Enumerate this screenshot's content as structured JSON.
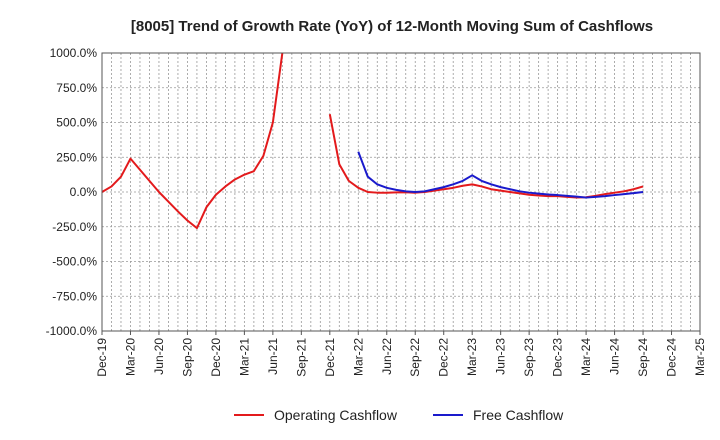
{
  "chart_data": {
    "type": "line",
    "title": "[8005]  Trend of Growth Rate (YoY) of 12-Month Moving Sum of Cashflows",
    "xlabel": "",
    "ylabel": "",
    "ylim": [
      -1000,
      1000
    ],
    "y_ticks": [
      "1000.0%",
      "750.0%",
      "500.0%",
      "250.0%",
      "0.0%",
      "-250.0%",
      "-500.0%",
      "-750.0%",
      "-1000.0%"
    ],
    "y_tick_values": [
      1000,
      750,
      500,
      250,
      0,
      -250,
      -500,
      -750,
      -1000
    ],
    "x_range": [
      "2019-12",
      "2025-03"
    ],
    "x_ticks": [
      "Dec-19",
      "Mar-20",
      "Jun-20",
      "Sep-20",
      "Dec-20",
      "Mar-21",
      "Jun-21",
      "Sep-21",
      "Dec-21",
      "Mar-22",
      "Jun-22",
      "Sep-22",
      "Dec-22",
      "Mar-23",
      "Jun-23",
      "Sep-23",
      "Dec-23",
      "Mar-24",
      "Jun-24",
      "Sep-24",
      "Dec-24",
      "Mar-25"
    ],
    "grid": true,
    "legend_position": "bottom",
    "series": [
      {
        "name": "Operating Cashflow",
        "color": "#e31a1c",
        "points": [
          [
            "2019-12",
            0
          ],
          [
            "2020-01",
            40
          ],
          [
            "2020-02",
            110
          ],
          [
            "2020-03",
            240
          ],
          [
            "2020-04",
            160
          ],
          [
            "2020-05",
            80
          ],
          [
            "2020-06",
            0
          ],
          [
            "2020-07",
            -70
          ],
          [
            "2020-08",
            -140
          ],
          [
            "2020-09",
            -205
          ],
          [
            "2020-10",
            -260
          ],
          [
            "2020-11",
            -110
          ],
          [
            "2020-12",
            -20
          ],
          [
            "2021-01",
            40
          ],
          [
            "2021-02",
            90
          ],
          [
            "2021-03",
            125
          ],
          [
            "2021-04",
            150
          ],
          [
            "2021-05",
            260
          ],
          [
            "2021-06",
            500
          ],
          [
            "2021-07",
            1000
          ],
          null,
          [
            "2021-12",
            560
          ],
          [
            "2022-01",
            200
          ],
          [
            "2022-02",
            80
          ],
          [
            "2022-03",
            30
          ],
          [
            "2022-04",
            0
          ],
          [
            "2022-05",
            -5
          ],
          [
            "2022-06",
            -5
          ],
          [
            "2022-07",
            -3
          ],
          [
            "2022-08",
            -2
          ],
          [
            "2022-09",
            -5
          ],
          [
            "2022-10",
            0
          ],
          [
            "2022-11",
            10
          ],
          [
            "2022-12",
            20
          ],
          [
            "2023-01",
            30
          ],
          [
            "2023-02",
            45
          ],
          [
            "2023-03",
            55
          ],
          [
            "2023-04",
            40
          ],
          [
            "2023-05",
            20
          ],
          [
            "2023-06",
            10
          ],
          [
            "2023-07",
            0
          ],
          [
            "2023-08",
            -10
          ],
          [
            "2023-09",
            -20
          ],
          [
            "2023-10",
            -25
          ],
          [
            "2023-11",
            -30
          ],
          [
            "2023-12",
            -30
          ],
          [
            "2024-01",
            -35
          ],
          [
            "2024-02",
            -40
          ],
          [
            "2024-03",
            -38
          ],
          [
            "2024-04",
            -28
          ],
          [
            "2024-05",
            -15
          ],
          [
            "2024-06",
            -5
          ],
          [
            "2024-07",
            5
          ],
          [
            "2024-08",
            20
          ],
          [
            "2024-09",
            40
          ]
        ]
      },
      {
        "name": "Free Cashflow",
        "color": "#1a1acc",
        "points": [
          [
            "2022-03",
            290
          ],
          [
            "2022-04",
            110
          ],
          [
            "2022-05",
            55
          ],
          [
            "2022-06",
            30
          ],
          [
            "2022-07",
            15
          ],
          [
            "2022-08",
            5
          ],
          [
            "2022-09",
            0
          ],
          [
            "2022-10",
            5
          ],
          [
            "2022-11",
            20
          ],
          [
            "2022-12",
            35
          ],
          [
            "2023-01",
            55
          ],
          [
            "2023-02",
            80
          ],
          [
            "2023-03",
            120
          ],
          [
            "2023-04",
            80
          ],
          [
            "2023-05",
            55
          ],
          [
            "2023-06",
            35
          ],
          [
            "2023-07",
            20
          ],
          [
            "2023-08",
            5
          ],
          [
            "2023-09",
            -5
          ],
          [
            "2023-10",
            -12
          ],
          [
            "2023-11",
            -18
          ],
          [
            "2023-12",
            -22
          ],
          [
            "2024-01",
            -28
          ],
          [
            "2024-02",
            -33
          ],
          [
            "2024-03",
            -40
          ],
          [
            "2024-04",
            -35
          ],
          [
            "2024-05",
            -30
          ],
          [
            "2024-06",
            -22
          ],
          [
            "2024-07",
            -15
          ],
          [
            "2024-08",
            -8
          ],
          [
            "2024-09",
            0
          ]
        ]
      }
    ]
  }
}
